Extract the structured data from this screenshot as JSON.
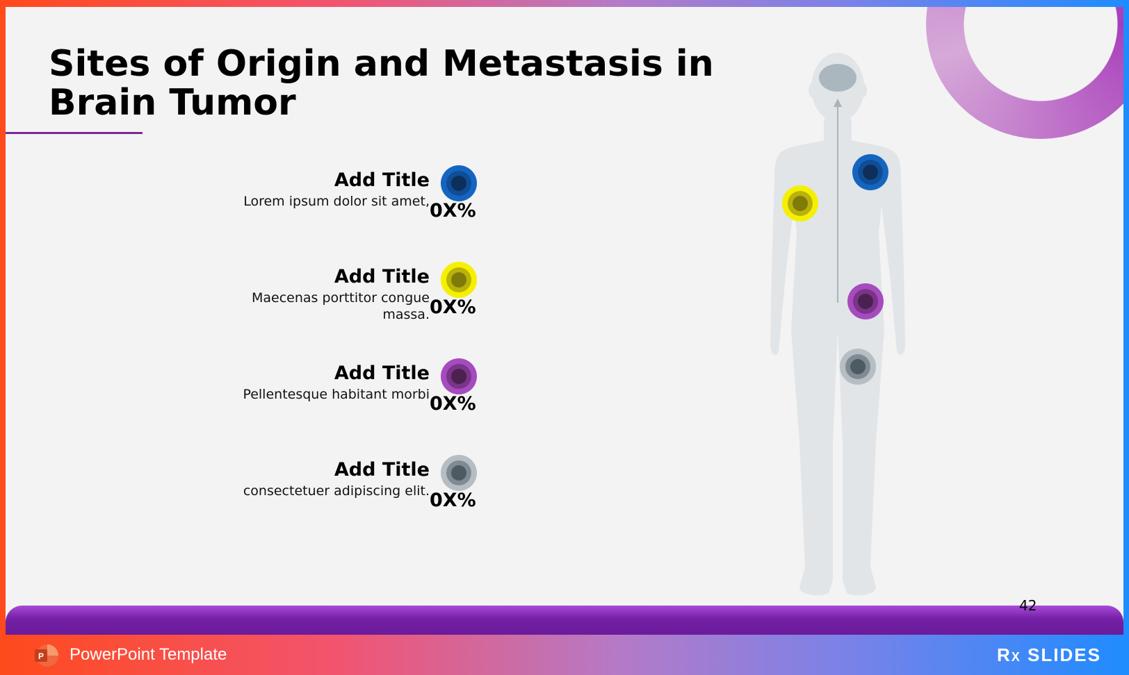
{
  "slide": {
    "title": "Sites of Origin and Metastasis in Brain Tumor",
    "page_number": "42"
  },
  "items": [
    {
      "title": "Add Title",
      "description": "Lorem ipsum dolor sit amet,",
      "percent": "0X%",
      "color": "#1565c0",
      "inner_color": "#0d2f5a"
    },
    {
      "title": "Add Title",
      "description": "Maecenas porttitor congue massa.",
      "percent": "0X%",
      "color": "#f5f000",
      "inner_color": "#7f7a0a"
    },
    {
      "title": "Add Title",
      "description": "Pellentesque habitant morbi",
      "percent": "0X%",
      "color": "#a64bbf",
      "inner_color": "#4a2150"
    },
    {
      "title": "Add Title",
      "description": "consectetuer adipiscing elit.",
      "percent": "0X%",
      "color": "#b6bec4",
      "inner_color": "#4d5a62"
    }
  ],
  "footer": {
    "label": "PowerPoint Template",
    "brand": "SLIDES",
    "brand_prefix": "R",
    "brand_sub": "X"
  },
  "colors": {
    "accent_purple": "#6a1b9a",
    "body_silhouette": "#e1e5e8",
    "brain": "#aab7bf"
  }
}
